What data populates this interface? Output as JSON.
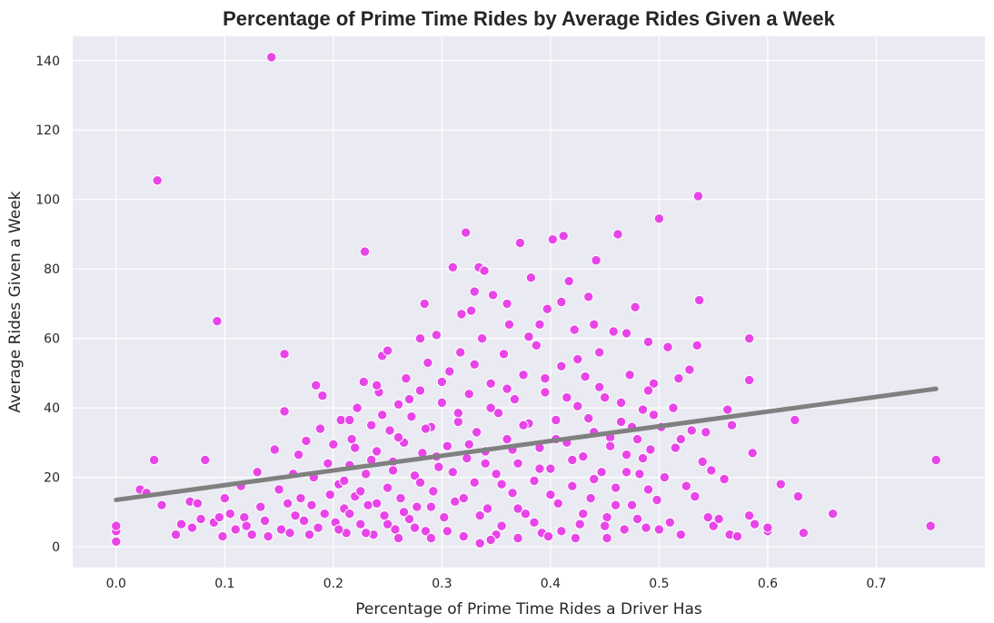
{
  "chart_data": {
    "type": "scatter",
    "title": "Percentage of Prime Time Rides by Average Rides Given a Week",
    "xlabel": "Percentage of Prime Time Rides a Driver Has",
    "ylabel": "Average Rides Given a Week",
    "xlim": [
      -0.04,
      0.8
    ],
    "ylim": [
      -6,
      147
    ],
    "x_ticks": [
      0.0,
      0.1,
      0.2,
      0.3,
      0.4,
      0.5,
      0.6,
      0.7
    ],
    "x_tick_labels": [
      "0.0",
      "0.1",
      "0.2",
      "0.3",
      "0.4",
      "0.5",
      "0.6",
      "0.7"
    ],
    "y_ticks": [
      0,
      20,
      40,
      60,
      80,
      100,
      120,
      140
    ],
    "y_tick_labels": [
      "0",
      "20",
      "40",
      "60",
      "80",
      "100",
      "120",
      "140"
    ],
    "grid": true,
    "colors": {
      "background": "#eaeaf2",
      "points": "#e845e8",
      "point_edge": "#ffffff",
      "regression": "#808080"
    },
    "regression_line": {
      "x": [
        0.0,
        0.755
      ],
      "y": [
        13.5,
        45.5
      ]
    },
    "series": [
      {
        "points": [
          [
            0.0,
            1.5
          ],
          [
            0.0,
            4.5
          ],
          [
            0.0,
            6.0
          ],
          [
            0.022,
            16.5
          ],
          [
            0.028,
            15.5
          ],
          [
            0.035,
            25.0
          ],
          [
            0.038,
            105.5
          ],
          [
            0.042,
            12.0
          ],
          [
            0.055,
            3.5
          ],
          [
            0.06,
            6.5
          ],
          [
            0.068,
            13.0
          ],
          [
            0.07,
            5.5
          ],
          [
            0.075,
            12.5
          ],
          [
            0.078,
            8.0
          ],
          [
            0.082,
            25.0
          ],
          [
            0.09,
            7.0
          ],
          [
            0.093,
            65.0
          ],
          [
            0.095,
            8.5
          ],
          [
            0.098,
            3.0
          ],
          [
            0.1,
            14.0
          ],
          [
            0.105,
            9.5
          ],
          [
            0.11,
            5.0
          ],
          [
            0.115,
            17.5
          ],
          [
            0.118,
            8.5
          ],
          [
            0.12,
            6.0
          ],
          [
            0.125,
            3.5
          ],
          [
            0.13,
            21.5
          ],
          [
            0.133,
            11.5
          ],
          [
            0.137,
            7.5
          ],
          [
            0.14,
            3.0
          ],
          [
            0.143,
            141.0
          ],
          [
            0.146,
            28.0
          ],
          [
            0.15,
            16.5
          ],
          [
            0.152,
            5.0
          ],
          [
            0.155,
            39.0
          ],
          [
            0.155,
            55.5
          ],
          [
            0.158,
            12.5
          ],
          [
            0.16,
            4.0
          ],
          [
            0.163,
            21.0
          ],
          [
            0.165,
            9.0
          ],
          [
            0.168,
            26.5
          ],
          [
            0.17,
            14.0
          ],
          [
            0.173,
            7.5
          ],
          [
            0.175,
            30.5
          ],
          [
            0.178,
            3.5
          ],
          [
            0.18,
            12.0
          ],
          [
            0.182,
            20.0
          ],
          [
            0.184,
            46.5
          ],
          [
            0.186,
            5.5
          ],
          [
            0.188,
            34.0
          ],
          [
            0.19,
            43.5
          ],
          [
            0.192,
            9.5
          ],
          [
            0.195,
            24.0
          ],
          [
            0.197,
            15.0
          ],
          [
            0.2,
            29.5
          ],
          [
            0.202,
            7.0
          ],
          [
            0.205,
            18.0
          ],
          [
            0.207,
            36.5
          ],
          [
            0.21,
            11.0
          ],
          [
            0.212,
            4.0
          ],
          [
            0.215,
            23.5
          ],
          [
            0.217,
            31.0
          ],
          [
            0.22,
            14.5
          ],
          [
            0.222,
            40.0
          ],
          [
            0.225,
            6.5
          ],
          [
            0.228,
            47.5
          ],
          [
            0.229,
            85.0
          ],
          [
            0.23,
            21.0
          ],
          [
            0.232,
            12.0
          ],
          [
            0.235,
            35.0
          ],
          [
            0.237,
            3.5
          ],
          [
            0.24,
            27.5
          ],
          [
            0.242,
            44.5
          ],
          [
            0.245,
            55.0
          ],
          [
            0.247,
            9.0
          ],
          [
            0.25,
            17.0
          ],
          [
            0.252,
            33.5
          ],
          [
            0.255,
            24.5
          ],
          [
            0.257,
            5.0
          ],
          [
            0.26,
            41.0
          ],
          [
            0.262,
            14.0
          ],
          [
            0.265,
            30.0
          ],
          [
            0.267,
            48.5
          ],
          [
            0.27,
            8.0
          ],
          [
            0.272,
            37.5
          ],
          [
            0.275,
            20.5
          ],
          [
            0.277,
            11.5
          ],
          [
            0.28,
            45.0
          ],
          [
            0.282,
            27.0
          ],
          [
            0.284,
            70.0
          ],
          [
            0.285,
            4.5
          ],
          [
            0.287,
            53.0
          ],
          [
            0.29,
            34.5
          ],
          [
            0.292,
            16.0
          ],
          [
            0.295,
            61.0
          ],
          [
            0.297,
            23.0
          ],
          [
            0.3,
            41.5
          ],
          [
            0.302,
            8.5
          ],
          [
            0.305,
            29.0
          ],
          [
            0.307,
            50.5
          ],
          [
            0.31,
            80.5
          ],
          [
            0.312,
            13.0
          ],
          [
            0.315,
            36.0
          ],
          [
            0.317,
            56.0
          ],
          [
            0.32,
            3.0
          ],
          [
            0.322,
            90.5
          ],
          [
            0.323,
            25.5
          ],
          [
            0.325,
            44.0
          ],
          [
            0.327,
            68.0
          ],
          [
            0.33,
            18.5
          ],
          [
            0.332,
            33.0
          ],
          [
            0.334,
            80.5
          ],
          [
            0.335,
            1.0
          ],
          [
            0.337,
            60.0
          ],
          [
            0.339,
            79.5
          ],
          [
            0.34,
            27.5
          ],
          [
            0.342,
            11.0
          ],
          [
            0.345,
            47.0
          ],
          [
            0.347,
            72.5
          ],
          [
            0.35,
            21.0
          ],
          [
            0.352,
            38.5
          ],
          [
            0.355,
            6.0
          ],
          [
            0.357,
            55.5
          ],
          [
            0.36,
            31.0
          ],
          [
            0.362,
            64.0
          ],
          [
            0.365,
            15.5
          ],
          [
            0.367,
            42.5
          ],
          [
            0.37,
            24.0
          ],
          [
            0.372,
            87.5
          ],
          [
            0.375,
            49.5
          ],
          [
            0.377,
            9.5
          ],
          [
            0.38,
            35.5
          ],
          [
            0.382,
            77.5
          ],
          [
            0.385,
            19.0
          ],
          [
            0.387,
            58.0
          ],
          [
            0.39,
            28.5
          ],
          [
            0.392,
            4.0
          ],
          [
            0.395,
            44.5
          ],
          [
            0.397,
            68.5
          ],
          [
            0.4,
            22.5
          ],
          [
            0.402,
            88.5
          ],
          [
            0.405,
            36.5
          ],
          [
            0.407,
            12.5
          ],
          [
            0.41,
            52.0
          ],
          [
            0.412,
            89.5
          ],
          [
            0.415,
            30.0
          ],
          [
            0.417,
            76.5
          ],
          [
            0.42,
            17.5
          ],
          [
            0.422,
            62.5
          ],
          [
            0.425,
            40.5
          ],
          [
            0.427,
            6.5
          ],
          [
            0.43,
            26.0
          ],
          [
            0.432,
            49.0
          ],
          [
            0.435,
            72.0
          ],
          [
            0.437,
            14.0
          ],
          [
            0.44,
            33.0
          ],
          [
            0.442,
            82.5
          ],
          [
            0.445,
            56.0
          ],
          [
            0.447,
            21.5
          ],
          [
            0.45,
            43.0
          ],
          [
            0.452,
            8.5
          ],
          [
            0.455,
            31.5
          ],
          [
            0.458,
            62.0
          ],
          [
            0.46,
            17.0
          ],
          [
            0.462,
            90.0
          ],
          [
            0.465,
            36.0
          ],
          [
            0.468,
            5.0
          ],
          [
            0.47,
            26.5
          ],
          [
            0.473,
            49.5
          ],
          [
            0.475,
            12.0
          ],
          [
            0.478,
            69.0
          ],
          [
            0.48,
            31.0
          ],
          [
            0.482,
            21.0
          ],
          [
            0.485,
            39.5
          ],
          [
            0.488,
            5.5
          ],
          [
            0.49,
            59.0
          ],
          [
            0.492,
            28.0
          ],
          [
            0.495,
            47.0
          ],
          [
            0.498,
            13.5
          ],
          [
            0.5,
            94.5
          ],
          [
            0.502,
            34.5
          ],
          [
            0.505,
            20.0
          ],
          [
            0.508,
            57.5
          ],
          [
            0.51,
            7.0
          ],
          [
            0.513,
            40.0
          ],
          [
            0.515,
            28.5
          ],
          [
            0.518,
            48.5
          ],
          [
            0.52,
            3.5
          ],
          [
            0.525,
            17.5
          ],
          [
            0.528,
            51.0
          ],
          [
            0.53,
            33.5
          ],
          [
            0.533,
            14.5
          ],
          [
            0.535,
            58.0
          ],
          [
            0.536,
            101.0
          ],
          [
            0.537,
            71.0
          ],
          [
            0.54,
            24.5
          ],
          [
            0.543,
            33.0
          ],
          [
            0.545,
            8.5
          ],
          [
            0.548,
            22.0
          ],
          [
            0.55,
            6.0
          ],
          [
            0.555,
            8.0
          ],
          [
            0.56,
            19.5
          ],
          [
            0.563,
            39.5
          ],
          [
            0.565,
            3.5
          ],
          [
            0.567,
            35.0
          ],
          [
            0.572,
            3.0
          ],
          [
            0.583,
            60.0
          ],
          [
            0.583,
            48.0
          ],
          [
            0.583,
            9.0
          ],
          [
            0.586,
            27.0
          ],
          [
            0.588,
            6.5
          ],
          [
            0.6,
            4.5
          ],
          [
            0.6,
            5.5
          ],
          [
            0.612,
            18.0
          ],
          [
            0.625,
            36.5
          ],
          [
            0.628,
            14.5
          ],
          [
            0.633,
            4.0
          ],
          [
            0.66,
            9.5
          ],
          [
            0.75,
            6.0
          ],
          [
            0.755,
            25.0
          ],
          [
            0.205,
            5.0
          ],
          [
            0.21,
            19.0
          ],
          [
            0.215,
            9.5
          ],
          [
            0.22,
            28.5
          ],
          [
            0.225,
            16.0
          ],
          [
            0.23,
            4.0
          ],
          [
            0.235,
            25.0
          ],
          [
            0.24,
            12.5
          ],
          [
            0.245,
            38.0
          ],
          [
            0.25,
            6.5
          ],
          [
            0.255,
            22.0
          ],
          [
            0.26,
            31.5
          ],
          [
            0.265,
            10.0
          ],
          [
            0.27,
            42.5
          ],
          [
            0.275,
            5.5
          ],
          [
            0.28,
            18.5
          ],
          [
            0.285,
            34.0
          ],
          [
            0.29,
            11.5
          ],
          [
            0.295,
            26.0
          ],
          [
            0.3,
            47.5
          ],
          [
            0.305,
            4.5
          ],
          [
            0.31,
            21.5
          ],
          [
            0.315,
            38.5
          ],
          [
            0.32,
            14.0
          ],
          [
            0.325,
            29.5
          ],
          [
            0.33,
            52.5
          ],
          [
            0.335,
            9.0
          ],
          [
            0.34,
            24.0
          ],
          [
            0.345,
            40.0
          ],
          [
            0.35,
            3.5
          ],
          [
            0.355,
            18.0
          ],
          [
            0.36,
            45.5
          ],
          [
            0.365,
            28.0
          ],
          [
            0.37,
            11.0
          ],
          [
            0.375,
            35.0
          ],
          [
            0.38,
            60.5
          ],
          [
            0.385,
            7.0
          ],
          [
            0.39,
            22.5
          ],
          [
            0.395,
            48.5
          ],
          [
            0.4,
            15.0
          ],
          [
            0.405,
            31.0
          ],
          [
            0.41,
            4.5
          ],
          [
            0.415,
            43.0
          ],
          [
            0.42,
            25.0
          ],
          [
            0.425,
            54.0
          ],
          [
            0.43,
            9.5
          ],
          [
            0.435,
            37.0
          ],
          [
            0.44,
            19.5
          ],
          [
            0.445,
            46.0
          ],
          [
            0.45,
            6.0
          ],
          [
            0.455,
            29.0
          ],
          [
            0.46,
            12.0
          ],
          [
            0.465,
            41.5
          ],
          [
            0.47,
            21.5
          ],
          [
            0.475,
            34.5
          ],
          [
            0.48,
            8.0
          ],
          [
            0.485,
            25.5
          ],
          [
            0.49,
            16.5
          ],
          [
            0.495,
            38.0
          ],
          [
            0.5,
            5.0
          ],
          [
            0.215,
            36.5
          ],
          [
            0.24,
            46.5
          ],
          [
            0.26,
            2.5
          ],
          [
            0.29,
            2.5
          ],
          [
            0.318,
            67.0
          ],
          [
            0.345,
            2.0
          ],
          [
            0.37,
            2.5
          ],
          [
            0.398,
            3.0
          ],
          [
            0.423,
            2.5
          ],
          [
            0.452,
            2.5
          ],
          [
            0.25,
            56.5
          ],
          [
            0.28,
            60.0
          ],
          [
            0.33,
            73.5
          ],
          [
            0.36,
            70.0
          ],
          [
            0.39,
            64.0
          ],
          [
            0.41,
            70.5
          ],
          [
            0.44,
            64.0
          ],
          [
            0.47,
            61.5
          ],
          [
            0.49,
            45.0
          ],
          [
            0.52,
            31.0
          ]
        ]
      }
    ]
  }
}
